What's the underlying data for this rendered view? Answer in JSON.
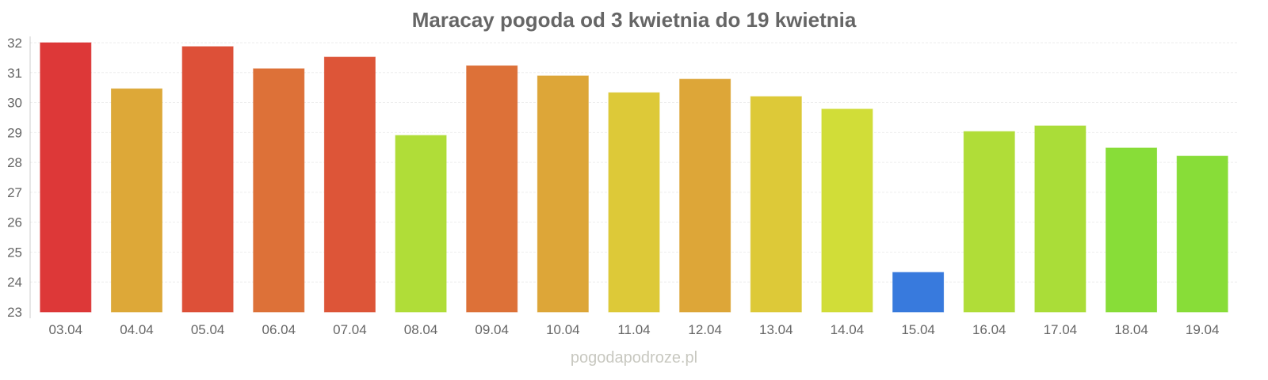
{
  "chart_data": {
    "type": "bar",
    "title": "Maracay pogoda od 3 kwietnia do 19 kwietnia",
    "xlabel": "",
    "ylabel": "",
    "ylim": [
      23,
      32
    ],
    "yticks": [
      23,
      24,
      25,
      26,
      27,
      28,
      29,
      30,
      31,
      32
    ],
    "grid": true,
    "categories": [
      "03.04",
      "04.04",
      "05.04",
      "06.04",
      "07.04",
      "08.04",
      "09.04",
      "10.04",
      "11.04",
      "12.04",
      "13.04",
      "14.04",
      "15.04",
      "16.04",
      "17.04",
      "18.04",
      "19.04"
    ],
    "values": [
      32.0,
      30.46,
      31.87,
      31.13,
      31.52,
      28.9,
      31.23,
      30.89,
      30.33,
      30.78,
      30.2,
      29.78,
      24.32,
      29.03,
      29.22,
      28.48,
      28.21
    ],
    "colors": [
      "#dc3434",
      "#dca634",
      "#dc4c34",
      "#dc6e34",
      "#dc5234",
      "#aedc34",
      "#dc6e34",
      "#dca434",
      "#dcc834",
      "#dca434",
      "#dcc834",
      "#d0dc34",
      "#3477dc",
      "#aedc34",
      "#a8dc34",
      "#86dc34",
      "#86dc34"
    ]
  },
  "watermark": "pogodapodroze.pl"
}
